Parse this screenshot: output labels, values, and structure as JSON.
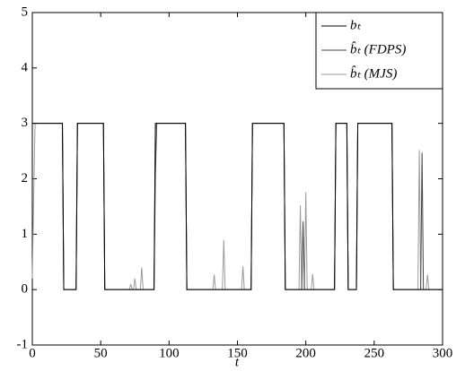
{
  "chart_data": {
    "type": "line",
    "xlabel": "t",
    "x": [
      0,
      1,
      2,
      3,
      22,
      23,
      32,
      33,
      52,
      53,
      70,
      71,
      72,
      73,
      74,
      75,
      76,
      79,
      80,
      81,
      89,
      90,
      91,
      92,
      93,
      112,
      113,
      132,
      133,
      134,
      139,
      140,
      141,
      153,
      154,
      155,
      160,
      161,
      184,
      185,
      195,
      196,
      197,
      198,
      199,
      200,
      201,
      204,
      205,
      206,
      221,
      222,
      230,
      231,
      237,
      238,
      263,
      264,
      282,
      283,
      284,
      285,
      286,
      288,
      289,
      290,
      300
    ],
    "series": [
      {
        "name": "bₜ",
        "color": "#000000",
        "values": [
          3,
          3,
          3,
          3,
          3,
          0,
          0,
          3,
          3,
          0,
          0,
          0,
          0,
          0,
          0,
          0,
          0,
          0,
          0,
          0,
          0,
          3,
          3,
          3,
          3,
          3,
          0,
          0,
          0,
          0,
          0,
          0,
          0,
          0,
          0,
          0,
          0,
          3,
          3,
          0,
          0,
          0,
          0,
          0,
          0,
          0,
          0,
          0,
          0,
          0,
          0,
          3,
          3,
          0,
          0,
          3,
          3,
          0,
          0,
          0,
          0,
          0,
          0,
          0,
          0,
          0,
          0
        ]
      },
      {
        "name": "b̂ₜ (FDPS)",
        "color": "#444444",
        "values": [
          3,
          3,
          3,
          3,
          3,
          0,
          0,
          3,
          3,
          0,
          0,
          0,
          0,
          0,
          0,
          0,
          0,
          0,
          0,
          0,
          0,
          2.1,
          3,
          3,
          3,
          3,
          0,
          0,
          0,
          0,
          0,
          0,
          0,
          0,
          0,
          0,
          0,
          3,
          3,
          0,
          0,
          0,
          0,
          1.23,
          0,
          0,
          0,
          0,
          0,
          0,
          0,
          3,
          3,
          0,
          0,
          3,
          3,
          0,
          0,
          0,
          0,
          2.47,
          0,
          0,
          0,
          0,
          0
        ]
      },
      {
        "name": "b̂ₜ (MJS)",
        "color": "#9a9a9a",
        "values": [
          0.2,
          1.7,
          3,
          3,
          3,
          0,
          0,
          3,
          3,
          0,
          0,
          0,
          0.1,
          0,
          0,
          0.2,
          0,
          0,
          0.4,
          0,
          0,
          2.9,
          3,
          3,
          3,
          3,
          0,
          0,
          0.27,
          0,
          0,
          0.9,
          0,
          0,
          0.42,
          0,
          0,
          3,
          3,
          0,
          0,
          1.52,
          0,
          0,
          0,
          1.76,
          0,
          0,
          0.28,
          0,
          0,
          3,
          3,
          0,
          0,
          3,
          3,
          0,
          0,
          2.52,
          0,
          0,
          0,
          0,
          0.27,
          0,
          0
        ]
      }
    ],
    "xlim": [
      0,
      300
    ],
    "xticks": [
      0,
      50,
      100,
      150,
      200,
      250,
      300
    ],
    "ylim": [
      -1,
      5
    ],
    "yticks": [
      -1,
      0,
      1,
      2,
      3,
      4,
      5
    ],
    "legend": "upper right"
  }
}
